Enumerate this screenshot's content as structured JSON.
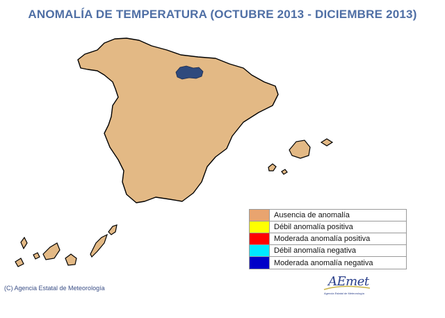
{
  "title": "ANOMALÍA DE TEMPERATURA (OCTUBRE 2013 - DICIEMBRE 2013)",
  "legend": [
    {
      "label": "Ausencia de anomalía",
      "color": "#e9a46f"
    },
    {
      "label": "Débil anomalía positiva",
      "color": "#ffff00"
    },
    {
      "label": "Moderada anomalía positiva",
      "color": "#ff0000"
    },
    {
      "label": "Débil anomalía negativa",
      "color": "#00e8ff"
    },
    {
      "label": "Moderada anomalía negativa",
      "color": "#0000c8"
    }
  ],
  "regions": {
    "peninsula": "Ausencia de anomalía",
    "baleares": "Ausencia de anomalía",
    "canarias": "Ausencia de anomalía",
    "la_rioja": "Moderada anomalía negativa"
  },
  "colors": {
    "land": "#e3b985",
    "outline": "#000000",
    "title": "#4f6fa5",
    "rioja": "#2f4a7d"
  },
  "copyright": "(C) Agencia Estatal de Meteorología",
  "logo": {
    "text": "AEmet",
    "subtitle": "Agencia Estatal de Meteorología"
  }
}
